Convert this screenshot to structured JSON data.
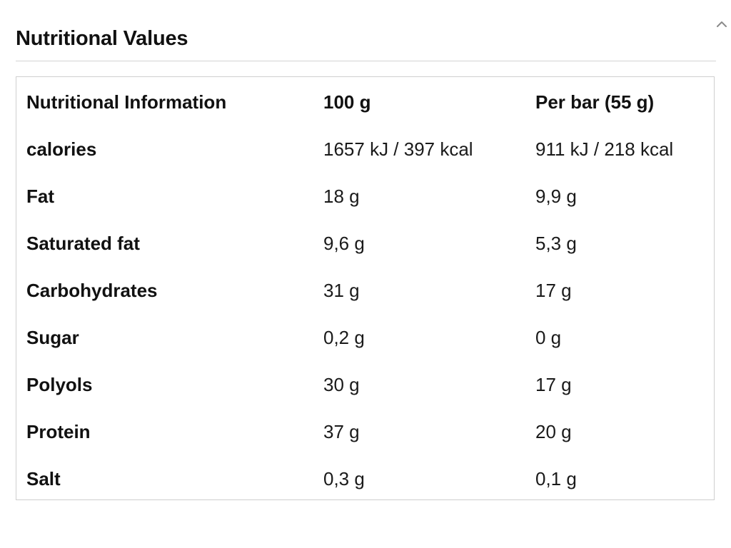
{
  "section": {
    "title": "Nutritional Values"
  },
  "table": {
    "headers": [
      "Nutritional Information",
      "100 g",
      "Per bar (55 g)"
    ],
    "rows": [
      {
        "label": "calories",
        "per_100g": "1657 kJ / 397 kcal",
        "per_bar": "911 kJ / 218 kcal"
      },
      {
        "label": "Fat",
        "per_100g": "18 g",
        "per_bar": "9,9 g"
      },
      {
        "label": "Saturated fat",
        "per_100g": "9,6 g",
        "per_bar": "5,3 g"
      },
      {
        "label": "Carbohydrates",
        "per_100g": "31 g",
        "per_bar": "17 g"
      },
      {
        "label": "Sugar",
        "per_100g": "0,2 g",
        "per_bar": "0 g"
      },
      {
        "label": "Polyols",
        "per_100g": "30 g",
        "per_bar": "17 g"
      },
      {
        "label": "Protein",
        "per_100g": "37 g",
        "per_bar": "20 g"
      },
      {
        "label": "Salt",
        "per_100g": "0,3 g",
        "per_bar": "0,1 g"
      }
    ]
  },
  "icons": {
    "toggle": "chevron-up-icon"
  },
  "colors": {
    "text": "#111111",
    "border": "#cfcfcf",
    "rule": "#d4d4d4",
    "background": "#ffffff"
  }
}
